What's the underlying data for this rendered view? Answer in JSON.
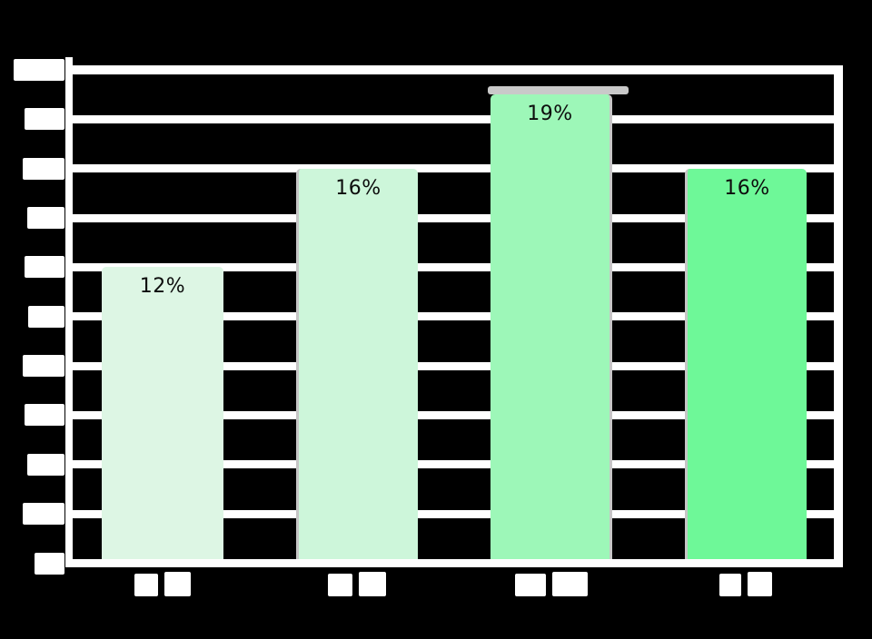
{
  "canvas": {
    "background_color": "#000000",
    "frame_color": "#ffffff"
  },
  "chart_data": {
    "type": "bar",
    "title": "",
    "xlabel": "",
    "ylabel": "",
    "categories": [
      "",
      "",
      "",
      ""
    ],
    "values": [
      12,
      16,
      19,
      16
    ],
    "data_labels": [
      "12%",
      "16%",
      "19%",
      "16%"
    ],
    "bars": [
      {
        "value": 12,
        "label": "12%",
        "color": "#ddf6e4",
        "gray_cap": false,
        "gray_edge": "none"
      },
      {
        "value": 16,
        "label": "16%",
        "color": "#cdf6da",
        "gray_cap": false,
        "gray_edge": "left"
      },
      {
        "value": 19,
        "label": "19%",
        "color": "#9df7b8",
        "gray_cap": true,
        "gray_edge": "right"
      },
      {
        "value": 16,
        "label": "16%",
        "color": "#6ef898",
        "gray_cap": false,
        "gray_edge": "left"
      }
    ],
    "ylim": [
      0,
      20
    ],
    "ytick_step": 2,
    "ytick_count": 11,
    "grid": true,
    "legend": false,
    "label_color": "#0d0d0d",
    "grid_color": "#ffffff",
    "cap_color": "#c9c9c9",
    "ticks_redacted": true
  }
}
